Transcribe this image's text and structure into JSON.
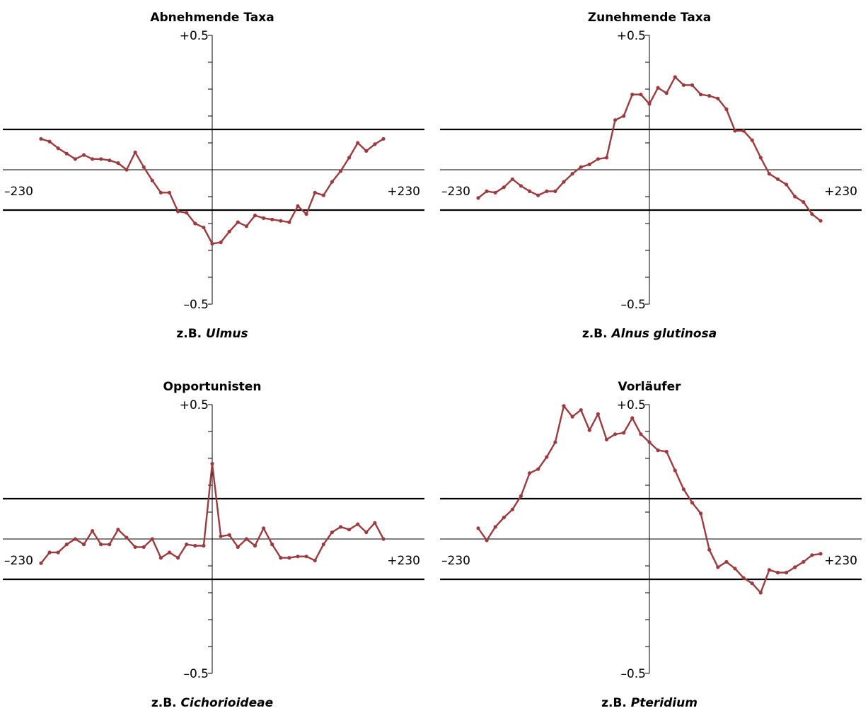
{
  "colors": {
    "series": "#9a3b3f",
    "axis": "#000000"
  },
  "chart_data": [
    {
      "type": "line",
      "title": "Abnehmende Taxa",
      "caption_prefix": "z.B.",
      "caption_taxon": "Ulmus",
      "xlim": [
        -230,
        230
      ],
      "ylim": [
        -0.5,
        0.5
      ],
      "xtick_labels": [
        "–230",
        "+230"
      ],
      "ytick_labels": [
        "+0.5",
        "–0.5"
      ],
      "threshold_lines": [
        0.15,
        -0.15
      ],
      "values": [
        0.115,
        0.105,
        0.08,
        0.06,
        0.04,
        0.055,
        0.04,
        0.04,
        0.035,
        0.025,
        0.0,
        0.065,
        0.01,
        -0.04,
        -0.085,
        -0.085,
        -0.155,
        -0.16,
        -0.2,
        -0.215,
        -0.275,
        -0.27,
        -0.23,
        -0.195,
        -0.21,
        -0.17,
        -0.18,
        -0.185,
        -0.19,
        -0.195,
        -0.135,
        -0.165,
        -0.085,
        -0.095,
        -0.045,
        -0.005,
        0.045,
        0.1,
        0.07,
        0.095,
        0.115
      ]
    },
    {
      "type": "line",
      "title": "Zunehmende Taxa",
      "caption_prefix": "z.B.",
      "caption_taxon": "Alnus glutinosa",
      "xlim": [
        -230,
        230
      ],
      "ylim": [
        -0.5,
        0.5
      ],
      "xtick_labels": [
        "–230",
        "+230"
      ],
      "ytick_labels": [
        "+0.5",
        "–0.5"
      ],
      "threshold_lines": [
        0.15,
        -0.15
      ],
      "values": [
        -0.105,
        -0.08,
        -0.085,
        -0.065,
        -0.035,
        -0.06,
        -0.08,
        -0.095,
        -0.08,
        -0.08,
        -0.045,
        -0.015,
        0.01,
        0.02,
        0.04,
        0.045,
        0.185,
        0.2,
        0.28,
        0.28,
        0.245,
        0.305,
        0.285,
        0.345,
        0.315,
        0.315,
        0.28,
        0.275,
        0.265,
        0.225,
        0.145,
        0.145,
        0.11,
        0.045,
        -0.015,
        -0.035,
        -0.055,
        -0.1,
        -0.12,
        -0.165,
        -0.19
      ]
    },
    {
      "type": "line",
      "title": "Opportunisten",
      "caption_prefix": "z.B.",
      "caption_taxon": "Cichorioideae",
      "xlim": [
        -230,
        230
      ],
      "ylim": [
        -0.5,
        0.5
      ],
      "xtick_labels": [
        "–230",
        "+230"
      ],
      "ytick_labels": [
        "+0.5",
        "–0.5"
      ],
      "threshold_lines": [
        0.15,
        -0.15
      ],
      "values": [
        -0.09,
        -0.05,
        -0.05,
        -0.02,
        0.0,
        -0.02,
        0.03,
        -0.02,
        -0.02,
        0.035,
        0.005,
        -0.03,
        -0.03,
        0.0,
        -0.07,
        -0.05,
        -0.07,
        -0.02,
        -0.025,
        -0.025,
        0.28,
        0.01,
        0.015,
        -0.03,
        0.0,
        -0.025,
        0.04,
        -0.02,
        -0.07,
        -0.07,
        -0.065,
        -0.065,
        -0.08,
        -0.02,
        0.025,
        0.045,
        0.035,
        0.055,
        0.025,
        0.06,
        0.0
      ]
    },
    {
      "type": "line",
      "title": "Vorläufer",
      "caption_prefix": "z.B.",
      "caption_taxon": "Pteridium",
      "xlim": [
        -230,
        230
      ],
      "ylim": [
        -0.5,
        0.5
      ],
      "xtick_labels": [
        "–230",
        "+230"
      ],
      "ytick_labels": [
        "+0.5",
        "–0.5"
      ],
      "threshold_lines": [
        0.15,
        -0.15
      ],
      "values": [
        0.04,
        -0.005,
        0.045,
        0.08,
        0.11,
        0.16,
        0.245,
        0.26,
        0.305,
        0.36,
        0.495,
        0.455,
        0.48,
        0.405,
        0.465,
        0.37,
        0.39,
        0.395,
        0.45,
        0.39,
        0.36,
        0.33,
        0.325,
        0.255,
        0.185,
        0.135,
        0.095,
        -0.04,
        -0.105,
        -0.085,
        -0.11,
        -0.145,
        -0.165,
        -0.2,
        -0.115,
        -0.125,
        -0.125,
        -0.105,
        -0.085,
        -0.06,
        -0.055
      ]
    }
  ]
}
